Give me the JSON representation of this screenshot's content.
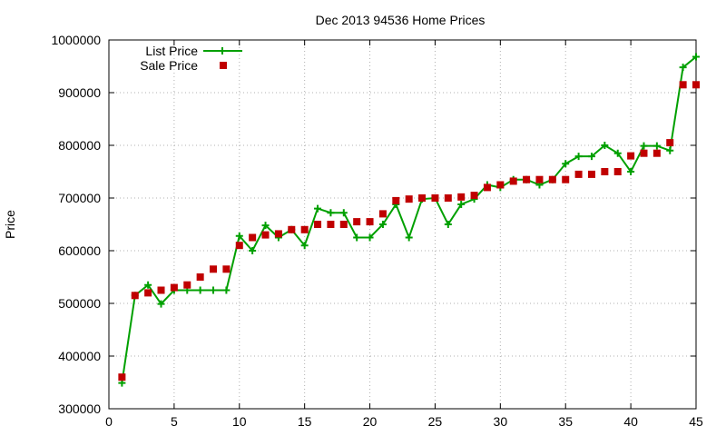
{
  "chart_data": {
    "type": "line",
    "title": "Dec 2013 94536 Home Prices",
    "xlabel": "",
    "ylabel": "Price",
    "xlim": [
      0,
      45
    ],
    "ylim": [
      300000,
      1000000
    ],
    "xticks": [
      0,
      5,
      10,
      15,
      20,
      25,
      30,
      35,
      40,
      45
    ],
    "yticks": [
      300000,
      400000,
      500000,
      600000,
      700000,
      800000,
      900000,
      1000000
    ],
    "grid": true,
    "legend_position": "top-left",
    "series": [
      {
        "name": "List Price",
        "style": "line-plus",
        "color": "#00a000",
        "x": [
          1,
          2,
          3,
          4,
          5,
          6,
          7,
          8,
          9,
          10,
          11,
          12,
          13,
          14,
          15,
          16,
          17,
          18,
          19,
          20,
          21,
          22,
          23,
          24,
          25,
          26,
          27,
          28,
          29,
          30,
          31,
          32,
          33,
          34,
          35,
          36,
          37,
          38,
          39,
          40,
          41,
          42,
          43,
          44,
          45
        ],
        "y": [
          349000,
          515000,
          535000,
          499000,
          525000,
          525000,
          525000,
          525000,
          525000,
          628000,
          600000,
          648000,
          625000,
          640000,
          610000,
          680000,
          672000,
          672000,
          625000,
          625000,
          650000,
          688000,
          625000,
          698000,
          700000,
          650000,
          688000,
          698000,
          725000,
          720000,
          735000,
          735000,
          725000,
          735000,
          765000,
          779000,
          779000,
          800000,
          785000,
          750000,
          799000,
          799000,
          790000,
          948000,
          968000
        ]
      },
      {
        "name": "Sale Price",
        "style": "square-points",
        "color": "#c00000",
        "x": [
          1,
          2,
          3,
          4,
          5,
          6,
          7,
          8,
          9,
          10,
          11,
          12,
          13,
          14,
          15,
          16,
          17,
          18,
          19,
          20,
          21,
          22,
          23,
          24,
          25,
          26,
          27,
          28,
          29,
          30,
          31,
          32,
          33,
          34,
          35,
          36,
          37,
          38,
          39,
          40,
          41,
          42,
          43,
          44,
          45
        ],
        "y": [
          360000,
          515000,
          520000,
          525000,
          530000,
          535000,
          550000,
          565000,
          565000,
          610000,
          625000,
          630000,
          632000,
          640000,
          640000,
          650000,
          650000,
          650000,
          655000,
          655000,
          670000,
          695000,
          698000,
          700000,
          700000,
          700000,
          702000,
          705000,
          720000,
          725000,
          732000,
          735000,
          735000,
          735000,
          735000,
          745000,
          745000,
          750000,
          750000,
          780000,
          785000,
          785000,
          805000,
          915000,
          915000
        ]
      }
    ]
  }
}
